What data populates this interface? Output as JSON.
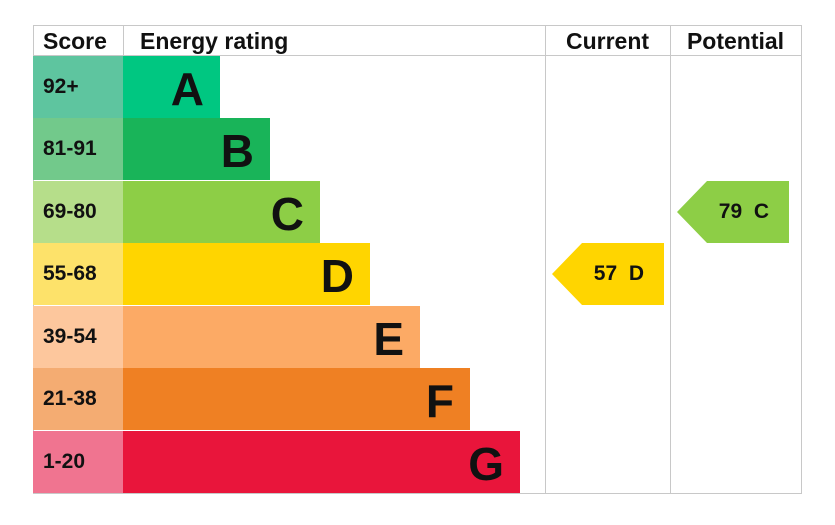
{
  "headers": {
    "score": "Score",
    "rating": "Energy rating",
    "current": "Current",
    "potential": "Potential"
  },
  "chart_data": {
    "type": "table",
    "bands": [
      {
        "letter": "A",
        "range": "92+",
        "color": "#00c781",
        "score_color": "#5ec59f"
      },
      {
        "letter": "B",
        "range": "81-91",
        "color": "#19b459",
        "score_color": "#72c98b"
      },
      {
        "letter": "C",
        "range": "69-80",
        "color": "#8dce46",
        "score_color": "#b6de8a"
      },
      {
        "letter": "D",
        "range": "55-68",
        "color": "#ffd500",
        "score_color": "#fde26a"
      },
      {
        "letter": "E",
        "range": "39-54",
        "color": "#fcaa65",
        "score_color": "#fdc79d"
      },
      {
        "letter": "F",
        "range": "21-38",
        "color": "#ef8023",
        "score_color": "#f4ac72"
      },
      {
        "letter": "G",
        "range": "1-20",
        "color": "#e9153b",
        "score_color": "#f07490"
      }
    ],
    "current": {
      "value": 57,
      "letter": "D",
      "label": "57  D",
      "color": "#ffd500"
    },
    "potential": {
      "value": 79,
      "letter": "C",
      "label": "79  C",
      "color": "#8dce46"
    }
  }
}
